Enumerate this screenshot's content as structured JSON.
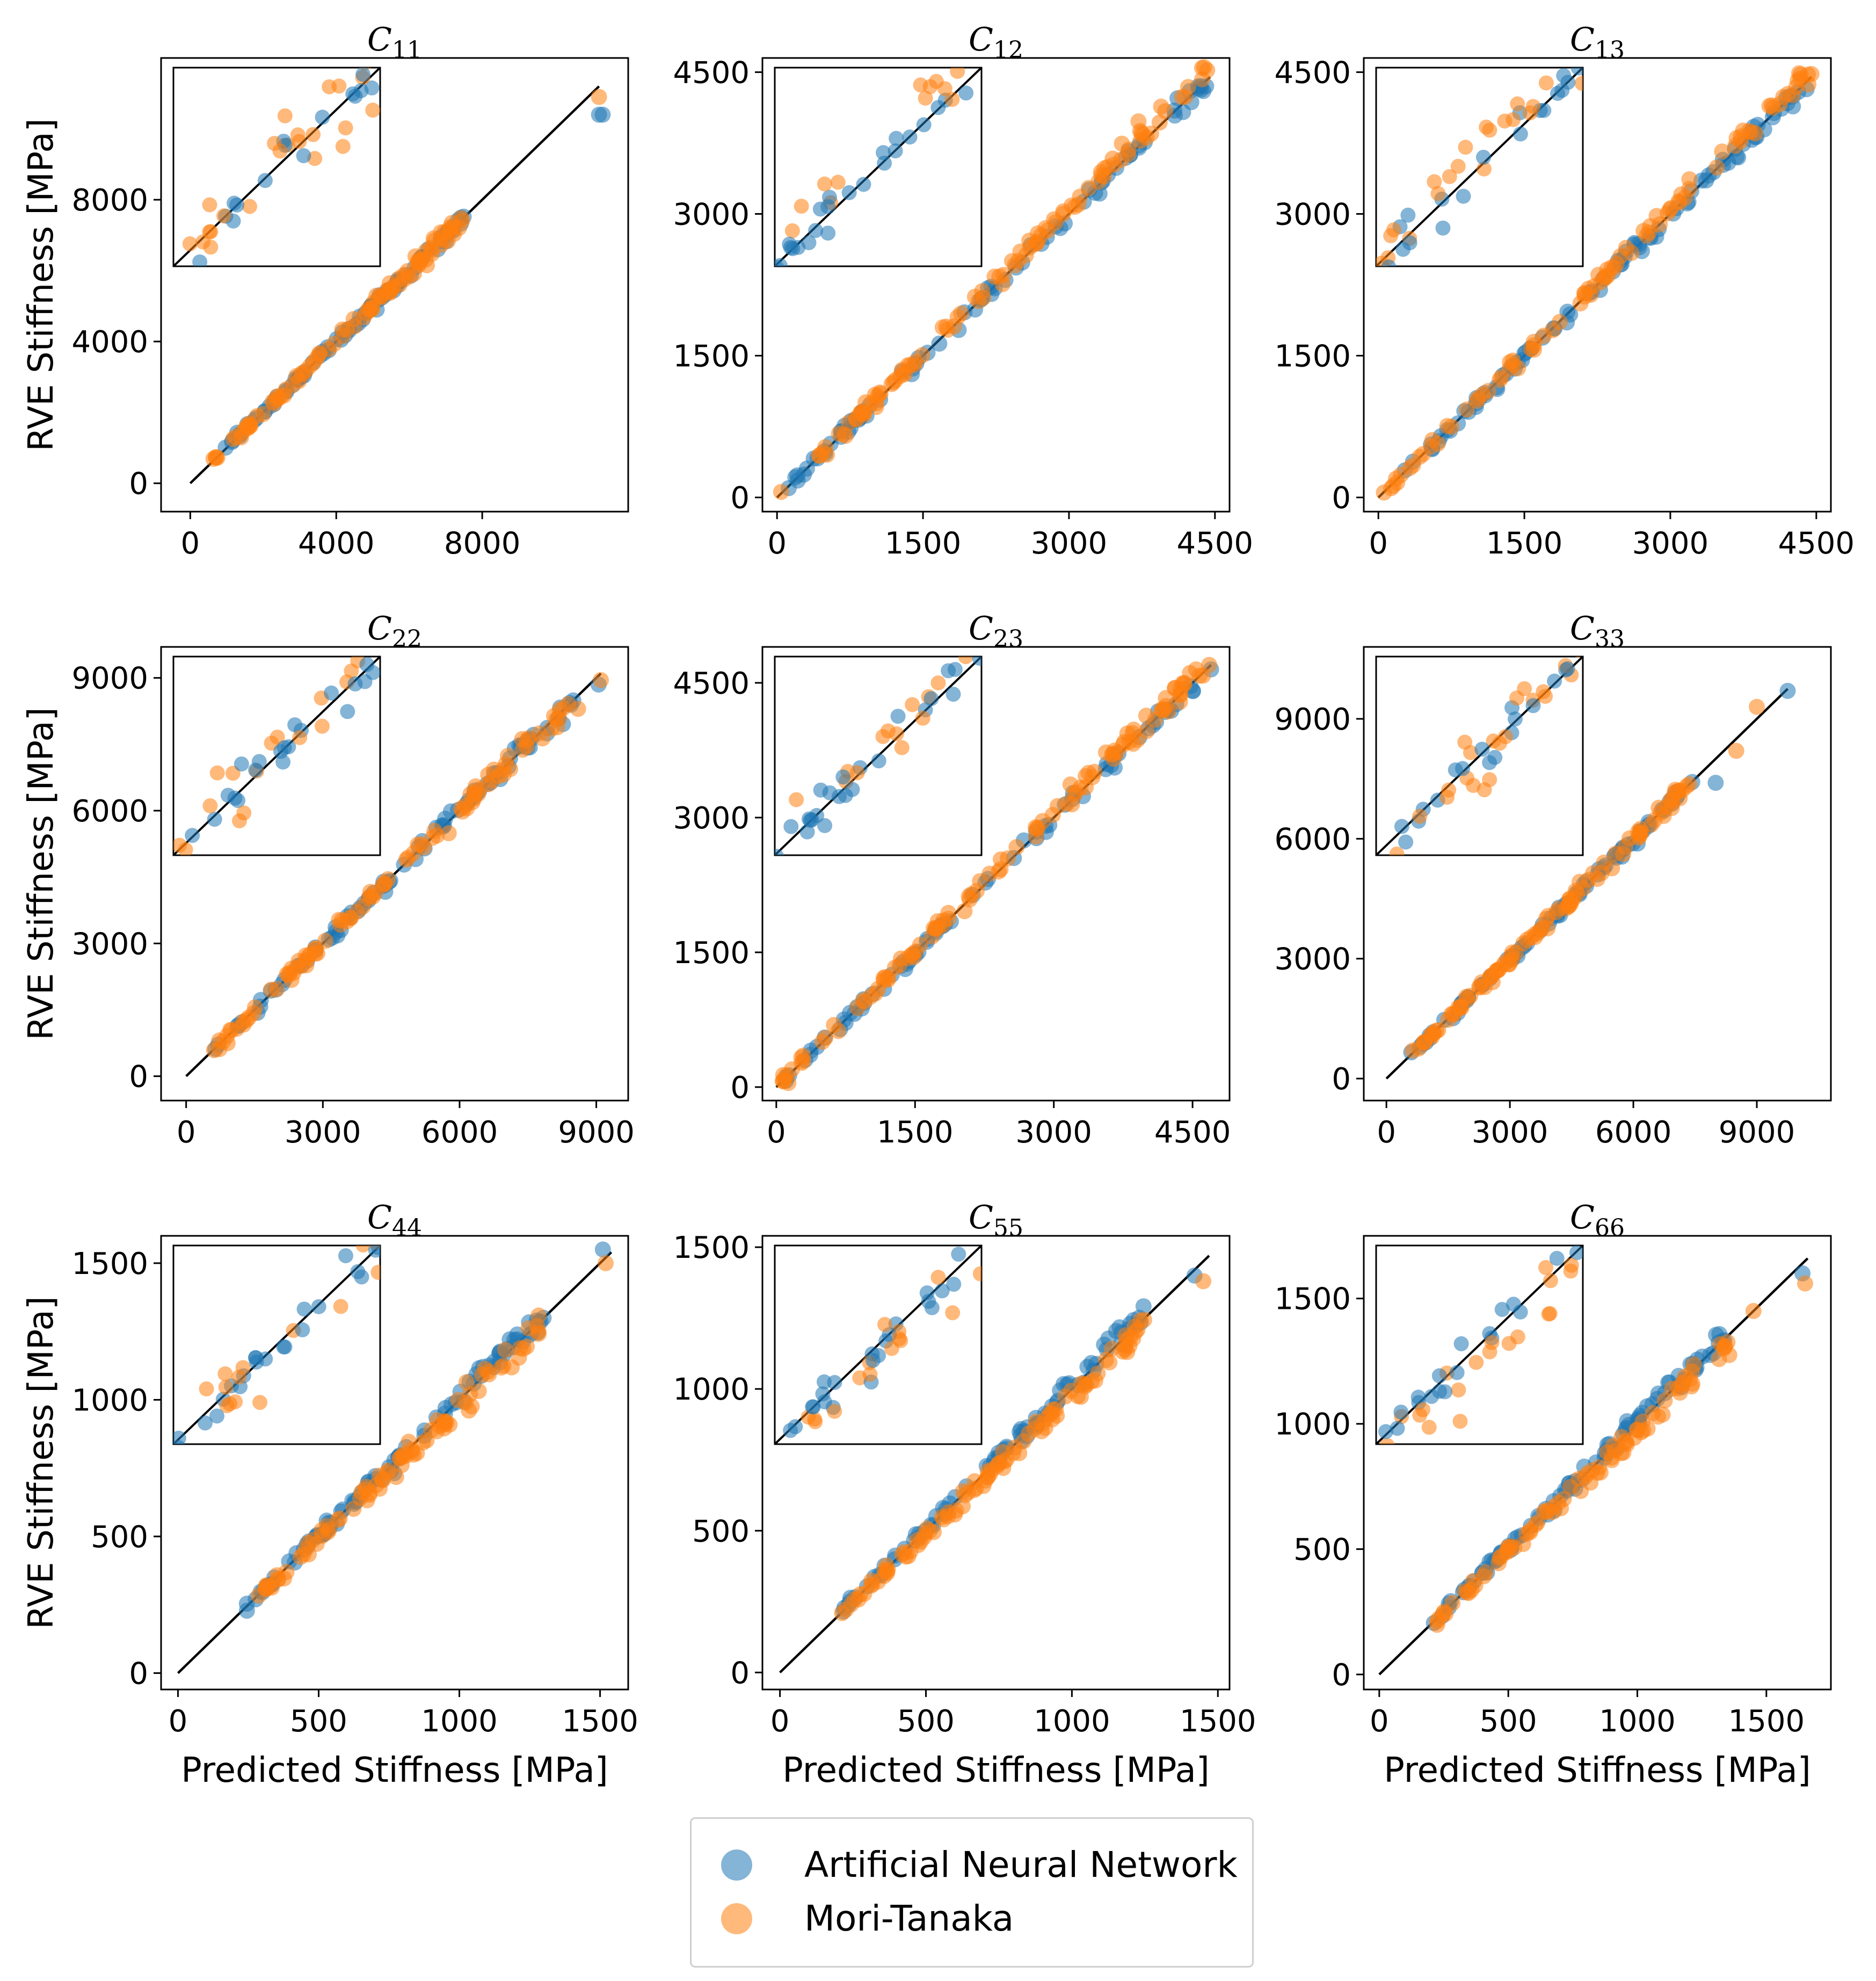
{
  "figure": {
    "xlabel": "Predicted Stiffness [MPa]",
    "ylabel": "RVE Stiffness [MPa]",
    "colors": {
      "ann": "#1f77b4",
      "mt": "#ff7f0e",
      "line": "#000000"
    }
  },
  "legend": {
    "position": "bottom-center",
    "entries": [
      {
        "name": "Artificial Neural Network",
        "color": "#1f77b4"
      },
      {
        "name": "Mori-Tanaka",
        "color": "#ff7f0e"
      }
    ]
  },
  "chart_data": [
    {
      "type": "scatter",
      "title": "C11",
      "title_base": "C",
      "title_sub": "11",
      "series_names": [
        "Artificial Neural Network",
        "Mori-Tanaka"
      ],
      "xlim": [
        -800,
        12000
      ],
      "ylim": [
        -800,
        12000
      ],
      "xticks": [
        0,
        4000,
        8000
      ],
      "yticks": [
        0,
        4000,
        8000
      ],
      "tick_labels": [
        "0",
        "4000",
        "8000"
      ],
      "line_max": 11200,
      "range": [
        600,
        7600
      ],
      "outliers": [
        {
          "x": 11200,
          "y": 10400,
          "s": "ann"
        },
        {
          "x": 11300,
          "y": 10400,
          "s": "ann"
        },
        {
          "x": 11200,
          "y": 10900,
          "s": "mt"
        }
      ],
      "ann_bias": 0.0,
      "mt_bias": 0.0,
      "ann_spread": 0.014,
      "mt_spread": 0.018,
      "inset_mt_bias": 0.02
    },
    {
      "type": "scatter",
      "title": "C12",
      "title_base": "C",
      "title_sub": "12",
      "series_names": [
        "Artificial Neural Network",
        "Mori-Tanaka"
      ],
      "xlim": [
        -150,
        4650
      ],
      "ylim": [
        -150,
        4650
      ],
      "xticks": [
        0,
        1500,
        3000,
        4500
      ],
      "yticks": [
        0,
        1500,
        3000,
        4500
      ],
      "tick_labels": [
        "0",
        "1500",
        "3000",
        "4500"
      ],
      "line_max": 4450,
      "range": [
        40,
        4430
      ],
      "outliers": [
        {
          "x": 4380,
          "y": 4300,
          "s": "ann"
        },
        {
          "x": 4420,
          "y": 4520,
          "s": "mt"
        }
      ],
      "ann_bias": -0.005,
      "mt_bias": 0.015,
      "ann_spread": 0.014,
      "mt_spread": 0.02,
      "inset_mt_bias": 0.07
    },
    {
      "type": "scatter",
      "title": "C13",
      "title_base": "C",
      "title_sub": "13",
      "series_names": [
        "Artificial Neural Network",
        "Mori-Tanaka"
      ],
      "xlim": [
        -150,
        4650
      ],
      "ylim": [
        -150,
        4650
      ],
      "xticks": [
        0,
        1500,
        3000,
        4500
      ],
      "yticks": [
        0,
        1500,
        3000,
        4500
      ],
      "tick_labels": [
        "0",
        "1500",
        "3000",
        "4500"
      ],
      "line_max": 4450,
      "range": [
        40,
        4430
      ],
      "outliers": [
        {
          "x": 4400,
          "y": 4320,
          "s": "ann"
        },
        {
          "x": 4450,
          "y": 4480,
          "s": "mt"
        }
      ],
      "ann_bias": -0.005,
      "mt_bias": 0.015,
      "ann_spread": 0.012,
      "mt_spread": 0.02,
      "inset_mt_bias": 0.07
    },
    {
      "type": "scatter",
      "title": "C22",
      "title_base": "C",
      "title_sub": "22",
      "series_names": [
        "Artificial Neural Network",
        "Mori-Tanaka"
      ],
      "xlim": [
        -550,
        9700
      ],
      "ylim": [
        -550,
        9700
      ],
      "xticks": [
        0,
        3000,
        6000,
        9000
      ],
      "yticks": [
        0,
        3000,
        6000,
        9000
      ],
      "tick_labels": [
        "0",
        "3000",
        "6000",
        "9000"
      ],
      "line_max": 9100,
      "range": [
        600,
        8500
      ],
      "outliers": [
        {
          "x": 9050,
          "y": 8850,
          "s": "ann"
        },
        {
          "x": 9100,
          "y": 8950,
          "s": "mt"
        },
        {
          "x": 8600,
          "y": 8300,
          "s": "mt"
        }
      ],
      "ann_bias": 0.0,
      "mt_bias": 0.0,
      "ann_spread": 0.014,
      "mt_spread": 0.016,
      "inset_mt_bias": 0.0
    },
    {
      "type": "scatter",
      "title": "C23",
      "title_base": "C",
      "title_sub": "23",
      "series_names": [
        "Artificial Neural Network",
        "Mori-Tanaka"
      ],
      "xlim": [
        -150,
        4900
      ],
      "ylim": [
        -150,
        4900
      ],
      "xticks": [
        0,
        1500,
        3000,
        4500
      ],
      "yticks": [
        0,
        1500,
        3000,
        4500
      ],
      "tick_labels": [
        "0",
        "1500",
        "3000",
        "4500"
      ],
      "line_max": 4700,
      "range": [
        40,
        4650
      ],
      "outliers": [
        {
          "x": 4700,
          "y": 4650,
          "s": "ann"
        },
        {
          "x": 4680,
          "y": 4700,
          "s": "mt"
        }
      ],
      "ann_bias": -0.005,
      "mt_bias": 0.015,
      "ann_spread": 0.012,
      "mt_spread": 0.02,
      "inset_mt_bias": 0.06
    },
    {
      "type": "scatter",
      "title": "C33",
      "title_base": "C",
      "title_sub": "33",
      "series_names": [
        "Artificial Neural Network",
        "Mori-Tanaka"
      ],
      "xlim": [
        -550,
        10800
      ],
      "ylim": [
        -550,
        10800
      ],
      "xticks": [
        0,
        3000,
        6000,
        9000
      ],
      "yticks": [
        0,
        3000,
        6000,
        9000
      ],
      "tick_labels": [
        "0",
        "3000",
        "6000",
        "9000"
      ],
      "line_max": 9750,
      "range": [
        600,
        7500
      ],
      "outliers": [
        {
          "x": 9750,
          "y": 9700,
          "s": "ann"
        },
        {
          "x": 9000,
          "y": 9300,
          "s": "mt"
        },
        {
          "x": 8500,
          "y": 8200,
          "s": "mt"
        },
        {
          "x": 8000,
          "y": 7400,
          "s": "ann"
        }
      ],
      "ann_bias": 0.0,
      "mt_bias": 0.0,
      "ann_spread": 0.014,
      "mt_spread": 0.018,
      "inset_mt_bias": 0.0
    },
    {
      "type": "scatter",
      "title": "C44",
      "title_base": "C",
      "title_sub": "44",
      "series_names": [
        "Artificial Neural Network",
        "Mori-Tanaka"
      ],
      "xlim": [
        -60,
        1600
      ],
      "ylim": [
        -60,
        1600
      ],
      "xticks": [
        0,
        500,
        1000,
        1500
      ],
      "yticks": [
        0,
        500,
        1000,
        1500
      ],
      "tick_labels": [
        "0",
        "500",
        "1000",
        "1500"
      ],
      "line_max": 1540,
      "range": [
        240,
        1300
      ],
      "outliers": [
        {
          "x": 1510,
          "y": 1550,
          "s": "ann"
        },
        {
          "x": 1520,
          "y": 1500,
          "s": "mt"
        }
      ],
      "ann_bias": 0.01,
      "mt_bias": -0.025,
      "ann_spread": 0.02,
      "mt_spread": 0.025,
      "inset_mt_bias": -0.06
    },
    {
      "type": "scatter",
      "title": "C55",
      "title_base": "C",
      "title_sub": "55",
      "series_names": [
        "Artificial Neural Network",
        "Mori-Tanaka"
      ],
      "xlim": [
        -60,
        1540
      ],
      "ylim": [
        -60,
        1540
      ],
      "xticks": [
        0,
        500,
        1000,
        1500
      ],
      "yticks": [
        0,
        500,
        1000,
        1500
      ],
      "tick_labels": [
        "0",
        "500",
        "1000",
        "1500"
      ],
      "line_max": 1470,
      "range": [
        210,
        1250
      ],
      "outliers": [
        {
          "x": 1420,
          "y": 1400,
          "s": "ann"
        },
        {
          "x": 1450,
          "y": 1380,
          "s": "mt"
        }
      ],
      "ann_bias": 0.015,
      "mt_bias": -0.025,
      "ann_spread": 0.02,
      "mt_spread": 0.025,
      "inset_mt_bias": -0.08
    },
    {
      "type": "scatter",
      "title": "C66",
      "title_base": "C",
      "title_sub": "66",
      "series_names": [
        "Artificial Neural Network",
        "Mori-Tanaka"
      ],
      "xlim": [
        -60,
        1750
      ],
      "ylim": [
        -60,
        1750
      ],
      "xticks": [
        0,
        500,
        1000,
        1500
      ],
      "yticks": [
        0,
        500,
        1000,
        1500
      ],
      "tick_labels": [
        "0",
        "500",
        "1000",
        "1500"
      ],
      "line_max": 1660,
      "range": [
        210,
        1360
      ],
      "outliers": [
        {
          "x": 1640,
          "y": 1600,
          "s": "ann"
        },
        {
          "x": 1650,
          "y": 1560,
          "s": "mt"
        },
        {
          "x": 1450,
          "y": 1450,
          "s": "mt"
        }
      ],
      "ann_bias": 0.015,
      "mt_bias": -0.025,
      "ann_spread": 0.02,
      "mt_spread": 0.025,
      "inset_mt_bias": -0.08
    }
  ]
}
